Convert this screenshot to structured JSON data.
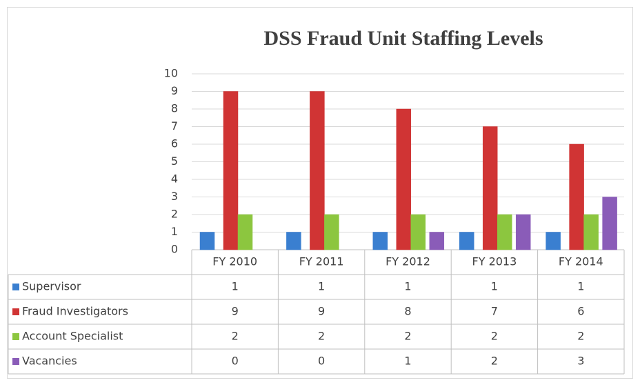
{
  "chart_data": {
    "type": "bar",
    "title": "DSS Fraud Unit Staffing Levels",
    "categories": [
      "FY 2010",
      "FY 2011",
      "FY 2012",
      "FY 2013",
      "FY 2014"
    ],
    "series": [
      {
        "name": "Supervisor",
        "color": "#3a7fd0",
        "values": [
          1,
          1,
          1,
          1,
          1
        ]
      },
      {
        "name": "Fraud Investigators",
        "color": "#d03434",
        "values": [
          9,
          9,
          8,
          7,
          6
        ]
      },
      {
        "name": "Account Specialist",
        "color": "#8cc63f",
        "values": [
          2,
          2,
          2,
          2,
          2
        ]
      },
      {
        "name": "Vacancies",
        "color": "#8a5cb8",
        "values": [
          0,
          0,
          1,
          2,
          3
        ]
      }
    ],
    "ylim": [
      0,
      10
    ],
    "yticks": [
      0,
      1,
      2,
      3,
      4,
      5,
      6,
      7,
      8,
      9,
      10
    ],
    "grid": true
  }
}
